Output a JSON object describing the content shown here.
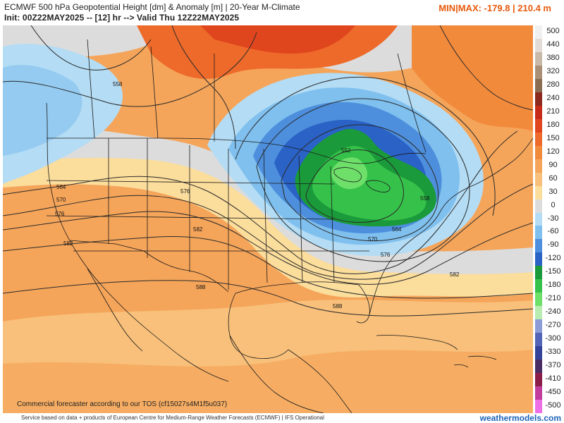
{
  "header": {
    "title_line1": "ECMWF 500 hPa Geopotential Height [dm] & Anomaly [m] | 20-Year M-Climate",
    "title_line2": "Init: 00Z22MAY2025 -- [12] hr --> Valid Thu 12Z22MAY2025",
    "minmax": "MIN|MAX: -179.8 | 210.4 m"
  },
  "legend": [
    {
      "label": "500",
      "color": "#f0f0f0"
    },
    {
      "label": "440",
      "color": "#e3dcd6"
    },
    {
      "label": "380",
      "color": "#c8b9a8"
    },
    {
      "label": "320",
      "color": "#a88f76"
    },
    {
      "label": "280",
      "color": "#8a6c52"
    },
    {
      "label": "240",
      "color": "#8c2a20"
    },
    {
      "label": "210",
      "color": "#c62a18"
    },
    {
      "label": "180",
      "color": "#e0461e"
    },
    {
      "label": "150",
      "color": "#ee6a2a"
    },
    {
      "label": "120",
      "color": "#f28a3c"
    },
    {
      "label": "90",
      "color": "#f5a55a"
    },
    {
      "label": "60",
      "color": "#f8c07a"
    },
    {
      "label": "30",
      "color": "#fbdd9c"
    },
    {
      "label": "0",
      "color": "#dcdcdc"
    },
    {
      "label": "-30",
      "color": "#b4dcf4"
    },
    {
      "label": "-60",
      "color": "#80c0ee"
    },
    {
      "label": "-90",
      "color": "#4d8fdc"
    },
    {
      "label": "-120",
      "color": "#2a62c6"
    },
    {
      "label": "-150",
      "color": "#1a9a3a"
    },
    {
      "label": "-180",
      "color": "#36c24a"
    },
    {
      "label": "-210",
      "color": "#6ee06a"
    },
    {
      "label": "-240",
      "color": "#b8ecb0"
    },
    {
      "label": "-270",
      "color": "#8c9cd6"
    },
    {
      "label": "-300",
      "color": "#5464b6"
    },
    {
      "label": "-330",
      "color": "#34429a"
    },
    {
      "label": "-370",
      "color": "#4a2c64"
    },
    {
      "label": "-410",
      "color": "#8a1e48"
    },
    {
      "label": "-450",
      "color": "#c23c9e"
    },
    {
      "label": "-500",
      "color": "#ee6ee6"
    }
  ],
  "contour_labels": [
    "558",
    "564",
    "570",
    "576",
    "576",
    "582",
    "582",
    "582",
    "588",
    "588",
    "552",
    "558",
    "564",
    "570",
    "576",
    "582"
  ],
  "tos_text": "Commercial forecaster according to our TOS (cf15027s4M1f5u037)",
  "footer": {
    "credit": "Service based on data + products of European Centre for Medium-Range Weather Forecasts (ECMWF) | IFS Operational",
    "brand": "weathermodels.com"
  }
}
